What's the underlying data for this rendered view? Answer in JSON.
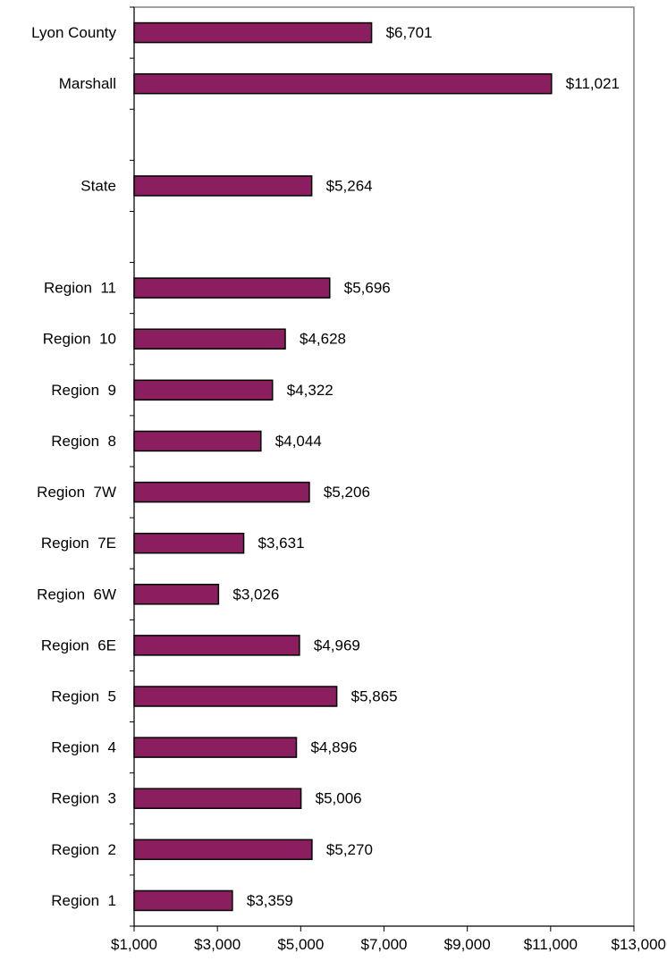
{
  "chart_data": {
    "type": "bar",
    "orientation": "horizontal",
    "title": "",
    "xlabel": "",
    "ylabel": "",
    "xlim": [
      1000,
      13000
    ],
    "x_ticks": [
      1000,
      3000,
      5000,
      7000,
      9000,
      11000,
      13000
    ],
    "x_tick_labels": [
      "$1,000",
      "$3,000",
      "$5,000",
      "$7,000",
      "$9,000",
      "$11,000",
      "$13,000"
    ],
    "grid": false,
    "legend": "none",
    "bar_color": "#8B1E5F",
    "categories": [
      "Lyon County",
      "Marshall",
      "",
      "State",
      "",
      "Region  11",
      "Region  10",
      "Region  9",
      "Region  8",
      "Region  7W",
      "Region  7E",
      "Region  6W",
      "Region  6E",
      "Region  5",
      "Region  4",
      "Region  3",
      "Region  2",
      "Region  1"
    ],
    "values": [
      6701,
      11021,
      null,
      5264,
      null,
      5696,
      4628,
      4322,
      4044,
      5206,
      3631,
      3026,
      4969,
      5865,
      4896,
      5006,
      5270,
      3359
    ],
    "value_labels": [
      "$6,701",
      "$11,021",
      "",
      "$5,264",
      "",
      "$5,696",
      "$4,628",
      "$4,322",
      "$4,044",
      "$5,206",
      "$3,631",
      "$3,026",
      "$4,969",
      "$5,865",
      "$4,896",
      "$5,006",
      "$5,270",
      "$3,359"
    ]
  }
}
